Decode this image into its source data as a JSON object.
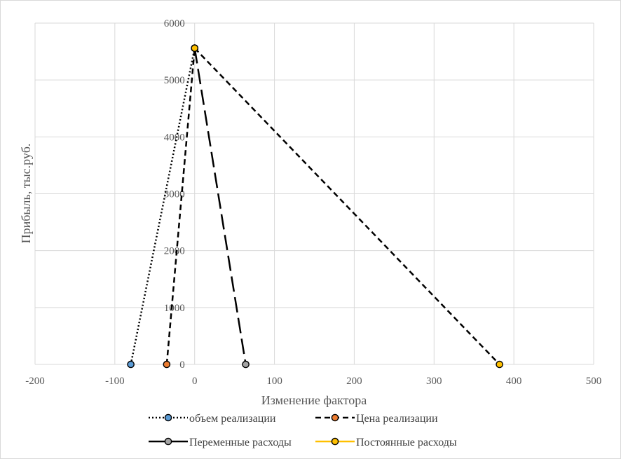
{
  "chart_data": {
    "type": "scatter",
    "title": "",
    "xlabel": "Изменение фактора",
    "ylabel": "Прибыль, тыс.руб.",
    "xlim": [
      -200,
      500
    ],
    "ylim": [
      0,
      6000
    ],
    "x_ticks": [
      -200,
      -100,
      0,
      100,
      200,
      300,
      400,
      500
    ],
    "y_ticks": [
      0,
      1000,
      2000,
      3000,
      4000,
      5000,
      6000
    ],
    "x_tick_labels": [
      "-200",
      "-100",
      "0",
      "100",
      "200",
      "300",
      "400",
      "500"
    ],
    "y_tick_labels": [
      "0",
      "1000",
      "2000",
      "3000",
      "4000",
      "5000",
      "6000"
    ],
    "grid": true,
    "legend_position": "bottom",
    "series": [
      {
        "name": "объем реализации",
        "line_color": "#000000",
        "line_style": "dotted",
        "marker_color": "#5b9bd5",
        "points": [
          {
            "x": -80,
            "y": 0
          },
          {
            "x": 0,
            "y": 5560
          }
        ]
      },
      {
        "name": "Цена реализации",
        "line_color": "#000000",
        "line_style": "dashed",
        "marker_color": "#ed7d31",
        "points": [
          {
            "x": -35,
            "y": 0
          },
          {
            "x": 0,
            "y": 5560
          }
        ]
      },
      {
        "name": "Переменные расходы",
        "line_color": "#000000",
        "line_style": "longdash",
        "legend_line_style": "solid",
        "marker_color": "#a5a5a5",
        "points": [
          {
            "x": 0,
            "y": 5560
          },
          {
            "x": 64,
            "y": 0
          }
        ]
      },
      {
        "name": "Постоянные расходы",
        "line_color": "#000000",
        "line_style": "dashed",
        "legend_line_color": "#ffc000",
        "legend_line_style": "solid",
        "marker_color": "#ffc000",
        "points": [
          {
            "x": 0,
            "y": 5560
          },
          {
            "x": 382,
            "y": 0
          }
        ]
      }
    ]
  }
}
